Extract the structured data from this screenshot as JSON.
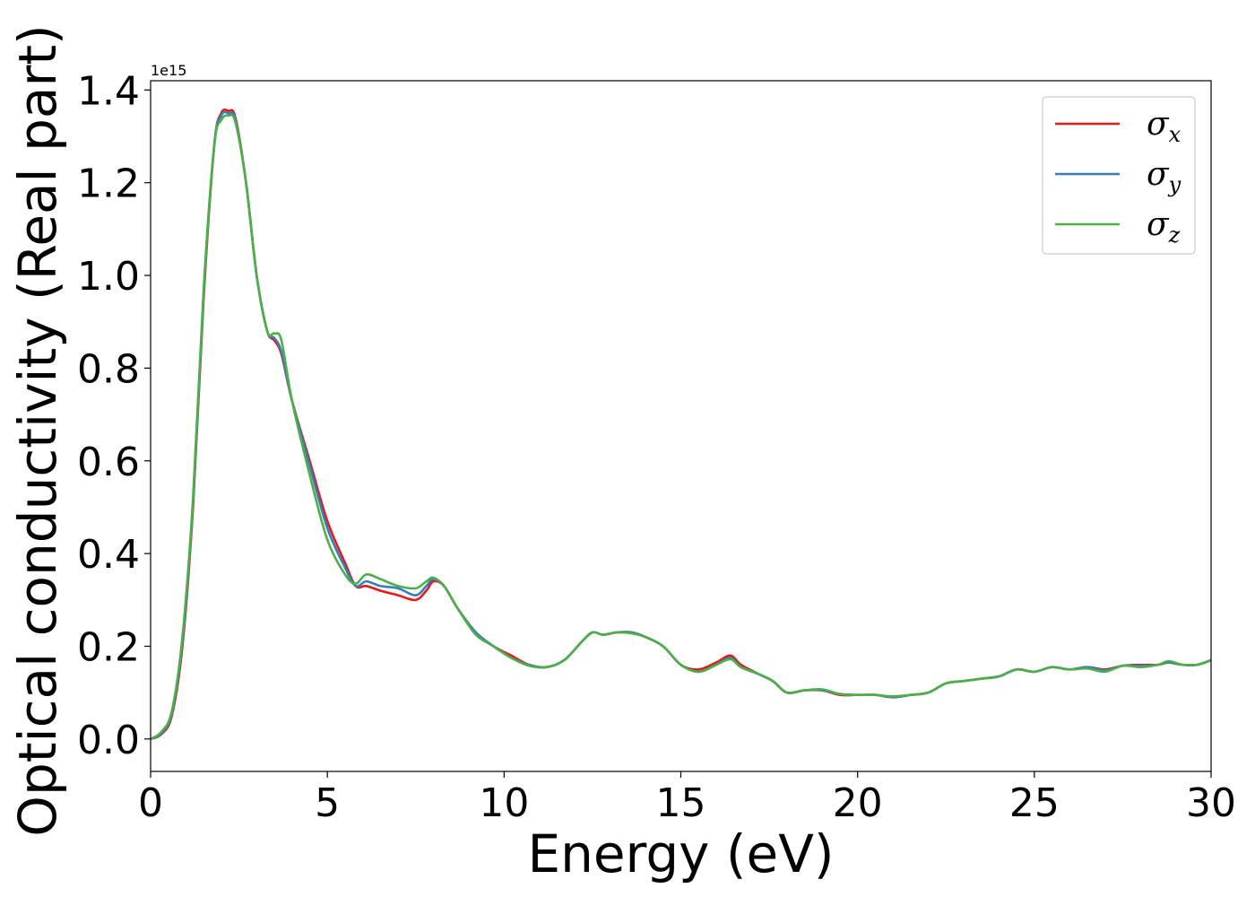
{
  "chart_data": {
    "type": "line",
    "title": "",
    "xlabel": "Energy (eV)",
    "ylabel": "Optical conductivity (Real part)",
    "y_offset_label": "1e15",
    "xlim": [
      0,
      30
    ],
    "ylim": [
      -0.07,
      1.42
    ],
    "x_ticks": [
      0,
      5,
      10,
      15,
      20,
      25,
      30
    ],
    "x_tick_labels": [
      "0",
      "5",
      "10",
      "15",
      "20",
      "25",
      "30"
    ],
    "y_ticks": [
      0.0,
      0.2,
      0.4,
      0.6,
      0.8,
      1.0,
      1.2,
      1.4
    ],
    "y_tick_labels": [
      "0.0",
      "0.2",
      "0.4",
      "0.6",
      "0.8",
      "1.0",
      "1.2",
      "1.4"
    ],
    "grid": false,
    "legend_position": "upper-right",
    "series": [
      {
        "name": "σx",
        "symbol": "σ",
        "subscript": "x",
        "color": "#e41a1c",
        "x": [
          0,
          0.3,
          0.6,
          0.9,
          1.2,
          1.5,
          1.8,
          2.0,
          2.2,
          2.4,
          2.7,
          3.0,
          3.3,
          3.5,
          3.7,
          4.0,
          4.5,
          5.0,
          5.5,
          5.8,
          6.1,
          6.5,
          7.0,
          7.5,
          7.8,
          8.0,
          8.3,
          8.7,
          9.2,
          9.7,
          10.2,
          10.7,
          11.2,
          11.7,
          12.2,
          12.5,
          12.8,
          13.2,
          13.6,
          14.0,
          14.5,
          15.0,
          15.5,
          16.0,
          16.4,
          16.7,
          17.2,
          17.6,
          18.0,
          18.5,
          19.0,
          19.5,
          20.0,
          20.5,
          21.0,
          21.5,
          22.0,
          22.5,
          23.0,
          23.5,
          24.0,
          24.5,
          25.0,
          25.5,
          26.0,
          26.5,
          27.0,
          27.5,
          28.0,
          28.5,
          28.8,
          29.2,
          29.6,
          30.0
        ],
        "y": [
          0.0,
          0.01,
          0.05,
          0.2,
          0.5,
          0.95,
          1.28,
          1.35,
          1.355,
          1.34,
          1.2,
          1.0,
          0.88,
          0.86,
          0.83,
          0.73,
          0.6,
          0.47,
          0.38,
          0.33,
          0.33,
          0.32,
          0.31,
          0.3,
          0.32,
          0.34,
          0.33,
          0.28,
          0.23,
          0.2,
          0.18,
          0.16,
          0.155,
          0.17,
          0.21,
          0.23,
          0.225,
          0.23,
          0.23,
          0.22,
          0.2,
          0.16,
          0.15,
          0.165,
          0.18,
          0.16,
          0.14,
          0.125,
          0.1,
          0.105,
          0.105,
          0.095,
          0.095,
          0.095,
          0.09,
          0.095,
          0.1,
          0.12,
          0.125,
          0.13,
          0.135,
          0.15,
          0.145,
          0.155,
          0.15,
          0.155,
          0.15,
          0.158,
          0.16,
          0.16,
          0.165,
          0.16,
          0.16,
          0.17
        ]
      },
      {
        "name": "σy",
        "symbol": "σ",
        "subscript": "y",
        "color": "#377eb8",
        "x": [
          0,
          0.3,
          0.6,
          0.9,
          1.2,
          1.5,
          1.8,
          2.0,
          2.2,
          2.4,
          2.7,
          3.0,
          3.3,
          3.5,
          3.7,
          4.0,
          4.5,
          5.0,
          5.5,
          5.8,
          6.1,
          6.5,
          7.0,
          7.5,
          7.8,
          8.0,
          8.3,
          8.7,
          9.2,
          9.7,
          10.2,
          10.7,
          11.2,
          11.7,
          12.2,
          12.5,
          12.8,
          13.2,
          13.6,
          14.0,
          14.5,
          15.0,
          15.5,
          16.0,
          16.4,
          16.7,
          17.2,
          17.6,
          18.0,
          18.5,
          19.0,
          19.5,
          20.0,
          20.5,
          21.0,
          21.5,
          22.0,
          22.5,
          23.0,
          23.5,
          24.0,
          24.5,
          25.0,
          25.5,
          26.0,
          26.5,
          27.0,
          27.5,
          28.0,
          28.5,
          28.8,
          29.2,
          29.6,
          30.0
        ],
        "y": [
          0.0,
          0.012,
          0.055,
          0.21,
          0.51,
          0.96,
          1.28,
          1.345,
          1.35,
          1.335,
          1.2,
          1.0,
          0.88,
          0.865,
          0.835,
          0.73,
          0.59,
          0.455,
          0.37,
          0.33,
          0.34,
          0.33,
          0.325,
          0.31,
          0.33,
          0.345,
          0.33,
          0.28,
          0.23,
          0.2,
          0.175,
          0.16,
          0.155,
          0.17,
          0.21,
          0.23,
          0.225,
          0.23,
          0.23,
          0.22,
          0.2,
          0.16,
          0.145,
          0.16,
          0.175,
          0.155,
          0.14,
          0.125,
          0.1,
          0.105,
          0.105,
          0.097,
          0.095,
          0.095,
          0.09,
          0.095,
          0.1,
          0.12,
          0.125,
          0.13,
          0.135,
          0.15,
          0.145,
          0.155,
          0.15,
          0.155,
          0.148,
          0.158,
          0.158,
          0.16,
          0.165,
          0.16,
          0.16,
          0.17
        ]
      },
      {
        "name": "σz",
        "symbol": "σ",
        "subscript": "z",
        "color": "#4daf4a",
        "x": [
          0,
          0.3,
          0.6,
          0.9,
          1.2,
          1.5,
          1.8,
          2.0,
          2.2,
          2.4,
          2.7,
          3.0,
          3.3,
          3.5,
          3.7,
          4.0,
          4.5,
          5.0,
          5.5,
          5.8,
          6.1,
          6.5,
          7.0,
          7.5,
          7.8,
          8.0,
          8.3,
          8.7,
          9.2,
          9.7,
          10.2,
          10.7,
          11.2,
          11.7,
          12.2,
          12.5,
          12.8,
          13.2,
          13.6,
          14.0,
          14.5,
          15.0,
          15.5,
          16.0,
          16.4,
          16.7,
          17.2,
          17.6,
          18.0,
          18.5,
          19.0,
          19.5,
          20.0,
          20.5,
          21.0,
          21.5,
          22.0,
          22.5,
          23.0,
          23.5,
          24.0,
          24.5,
          25.0,
          25.5,
          26.0,
          26.5,
          27.0,
          27.5,
          28.0,
          28.5,
          28.8,
          29.2,
          29.6,
          30.0
        ],
        "y": [
          0.0,
          0.015,
          0.06,
          0.22,
          0.52,
          0.97,
          1.28,
          1.335,
          1.345,
          1.33,
          1.2,
          1.0,
          0.88,
          0.875,
          0.86,
          0.73,
          0.57,
          0.43,
          0.355,
          0.335,
          0.355,
          0.345,
          0.33,
          0.325,
          0.34,
          0.348,
          0.33,
          0.28,
          0.225,
          0.2,
          0.175,
          0.158,
          0.155,
          0.17,
          0.21,
          0.23,
          0.225,
          0.23,
          0.228,
          0.22,
          0.2,
          0.16,
          0.145,
          0.16,
          0.172,
          0.155,
          0.14,
          0.125,
          0.1,
          0.105,
          0.107,
          0.097,
          0.095,
          0.095,
          0.092,
          0.095,
          0.1,
          0.12,
          0.125,
          0.13,
          0.135,
          0.15,
          0.145,
          0.155,
          0.15,
          0.152,
          0.145,
          0.158,
          0.155,
          0.16,
          0.168,
          0.16,
          0.16,
          0.17
        ]
      }
    ]
  }
}
